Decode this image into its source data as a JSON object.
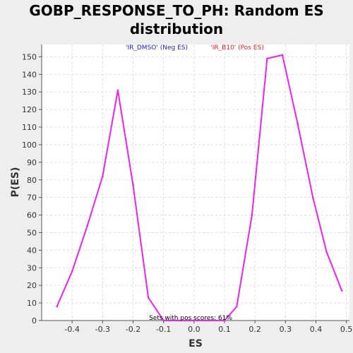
{
  "chart_data": {
    "type": "line",
    "title_lines": [
      "GOBP_RESPONSE_TO_PH: Random ES",
      "distribution"
    ],
    "xlabel": "ES",
    "ylabel": "P(ES)",
    "xlim": [
      -0.5,
      0.51
    ],
    "ylim": [
      0,
      157
    ],
    "x_ticks": [
      "-0.4",
      "-0.3",
      "-0.2",
      "-0.1",
      "0.0",
      "0.1",
      "0.2",
      "0.3",
      "0.4",
      "0.5"
    ],
    "x_tick_values": [
      -0.4,
      -0.3,
      -0.2,
      -0.1,
      0.0,
      0.1,
      0.2,
      0.3,
      0.4,
      0.5
    ],
    "y_ticks": [
      "0",
      "10",
      "20",
      "30",
      "40",
      "50",
      "60",
      "70",
      "80",
      "90",
      "100",
      "110",
      "120",
      "130",
      "140",
      "150"
    ],
    "y_tick_values": [
      0,
      10,
      20,
      30,
      40,
      50,
      60,
      70,
      80,
      90,
      100,
      110,
      120,
      130,
      140,
      150
    ],
    "grid": true,
    "series": [
      {
        "color": "#ee22ee",
        "x": [
          -0.45,
          -0.4,
          -0.35,
          -0.3,
          -0.25,
          -0.2,
          -0.15,
          -0.1,
          -0.05,
          0.0,
          0.05,
          0.1,
          0.14,
          0.19,
          0.24,
          0.29,
          0.34,
          0.39,
          0.435,
          0.485
        ],
        "y": [
          8,
          28,
          54,
          82,
          131,
          77,
          13,
          0,
          0,
          0,
          0,
          0,
          8,
          60,
          149,
          151,
          112,
          70,
          39,
          17
        ]
      }
    ],
    "annotations": {
      "neg_label": "'IR_DMSO' (Neg ES)",
      "neg_color": "#2222cc",
      "pos_label": "'IR_B10' (Pos ES)",
      "pos_color": "#dd2222",
      "footer": "Sets with pos scores: 61%"
    }
  }
}
